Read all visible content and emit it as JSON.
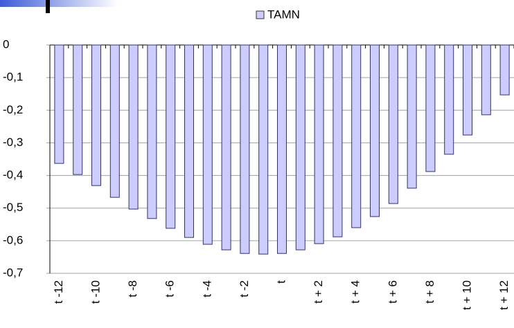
{
  "chart_data": {
    "type": "bar",
    "categories": [
      "t -12",
      null,
      "t -10",
      null,
      "t -8",
      null,
      "t -6",
      null,
      "t -4",
      null,
      "t -2",
      null,
      "t",
      null,
      "t + 2",
      null,
      "t + 4",
      null,
      "t + 6",
      null,
      "t + 8",
      null,
      "t + 10",
      null,
      "t + 12"
    ],
    "series": [
      {
        "name": "TAMN",
        "color": "#ccccff",
        "values": [
          -0.363,
          -0.397,
          -0.431,
          -0.467,
          -0.503,
          -0.532,
          -0.562,
          -0.59,
          -0.611,
          -0.628,
          -0.639,
          -0.641,
          -0.639,
          -0.628,
          -0.609,
          -0.588,
          -0.56,
          -0.526,
          -0.486,
          -0.439,
          -0.388,
          -0.335,
          -0.276,
          -0.214,
          -0.153
        ]
      }
    ],
    "ylim": [
      -0.7,
      0
    ],
    "yticks": [
      0,
      {
        "value": -0.1,
        "label": "-0,1"
      },
      {
        "value": -0.2,
        "label": "-0,2"
      },
      {
        "value": -0.3,
        "label": "-0,3"
      },
      {
        "value": -0.4,
        "label": "-0,4"
      },
      {
        "value": -0.5,
        "label": "-0,5"
      },
      {
        "value": -0.6,
        "label": "-0,6"
      },
      {
        "value": -0.7,
        "label": "-0,7"
      }
    ],
    "grid": true,
    "legend": "top"
  }
}
